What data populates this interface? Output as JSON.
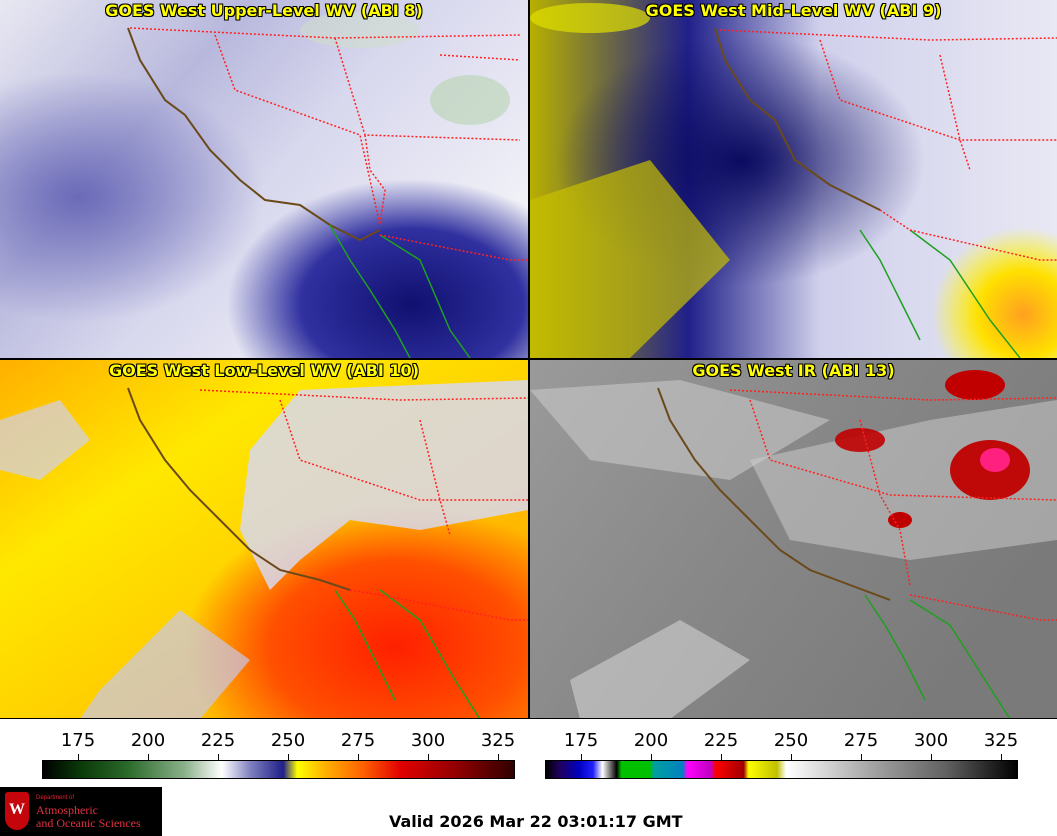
{
  "panels": {
    "upper_wv": {
      "title": "GOES West Upper-Level WV (ABI 8)"
    },
    "mid_wv": {
      "title": "GOES West Mid-Level WV (ABI 9)"
    },
    "low_wv": {
      "title": "GOES West Low-Level WV (ABI 10)"
    },
    "ir": {
      "title": "GOES West IR (ABI 13)"
    }
  },
  "colorbars": {
    "wv": {
      "ticks": [
        "175",
        "200",
        "225",
        "250",
        "275",
        "300",
        "325"
      ]
    },
    "ir": {
      "ticks": [
        "175",
        "200",
        "225",
        "250",
        "275",
        "300",
        "325"
      ]
    }
  },
  "footer": {
    "valid": "Valid 2026 Mar 22 03:01:17 GMT",
    "logo_line1": "Department of",
    "logo_line2": "Atmospheric",
    "logo_line3": "and Oceanic Sciences",
    "logo_letter": "W"
  },
  "colors": {
    "title_text": "#ffff00",
    "state_borders": "#ff2020",
    "coastline": "#6b4a1a",
    "mexico_coast": "#1fa020"
  }
}
